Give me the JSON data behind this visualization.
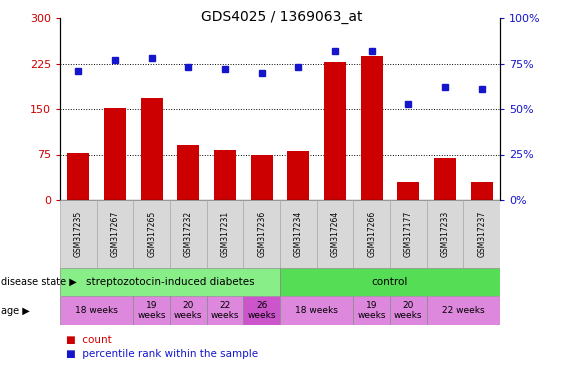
{
  "title": "GDS4025 / 1369063_at",
  "samples": [
    "GSM317235",
    "GSM317267",
    "GSM317265",
    "GSM317232",
    "GSM317231",
    "GSM317236",
    "GSM317234",
    "GSM317264",
    "GSM317266",
    "GSM317177",
    "GSM317233",
    "GSM317237"
  ],
  "counts": [
    78,
    152,
    168,
    90,
    82,
    75,
    80,
    228,
    238,
    30,
    70,
    30
  ],
  "percentiles": [
    71,
    77,
    78,
    73,
    72,
    70,
    73,
    82,
    82,
    53,
    62,
    61
  ],
  "bar_color": "#cc0000",
  "dot_color": "#1515cc",
  "ylim_left": [
    0,
    300
  ],
  "ylim_right": [
    0,
    100
  ],
  "yticks_left": [
    0,
    75,
    150,
    225,
    300
  ],
  "ytick_labels_left": [
    "0",
    "75",
    "150",
    "225",
    "300"
  ],
  "yticks_right": [
    0,
    25,
    50,
    75,
    100
  ],
  "ytick_labels_right": [
    "0%",
    "25%",
    "50%",
    "75%",
    "100%"
  ],
  "hlines": [
    75,
    150,
    225
  ],
  "disease_state_groups": [
    {
      "label": "streptozotocin-induced diabetes",
      "start": 0,
      "end": 6,
      "color": "#88ee88"
    },
    {
      "label": "control",
      "start": 6,
      "end": 12,
      "color": "#55dd55"
    }
  ],
  "age_groups": [
    {
      "label": "18 weeks",
      "start": 0,
      "end": 2,
      "color": "#dd88dd"
    },
    {
      "label": "19\nweeks",
      "start": 2,
      "end": 3,
      "color": "#dd88dd"
    },
    {
      "label": "20\nweeks",
      "start": 3,
      "end": 4,
      "color": "#dd88dd"
    },
    {
      "label": "22\nweeks",
      "start": 4,
      "end": 5,
      "color": "#dd88dd"
    },
    {
      "label": "26\nweeks",
      "start": 5,
      "end": 6,
      "color": "#cc55cc"
    },
    {
      "label": "18 weeks",
      "start": 6,
      "end": 8,
      "color": "#dd88dd"
    },
    {
      "label": "19\nweeks",
      "start": 8,
      "end": 9,
      "color": "#dd88dd"
    },
    {
      "label": "20\nweeks",
      "start": 9,
      "end": 10,
      "color": "#dd88dd"
    },
    {
      "label": "22 weeks",
      "start": 10,
      "end": 12,
      "color": "#dd88dd"
    }
  ],
  "axis_color_left": "#cc0000",
  "axis_color_right": "#1515cc",
  "bg_color": "#ffffff",
  "sample_label_bg": "#d8d8d8",
  "fig_width": 5.63,
  "fig_height": 3.84,
  "dpi": 100
}
